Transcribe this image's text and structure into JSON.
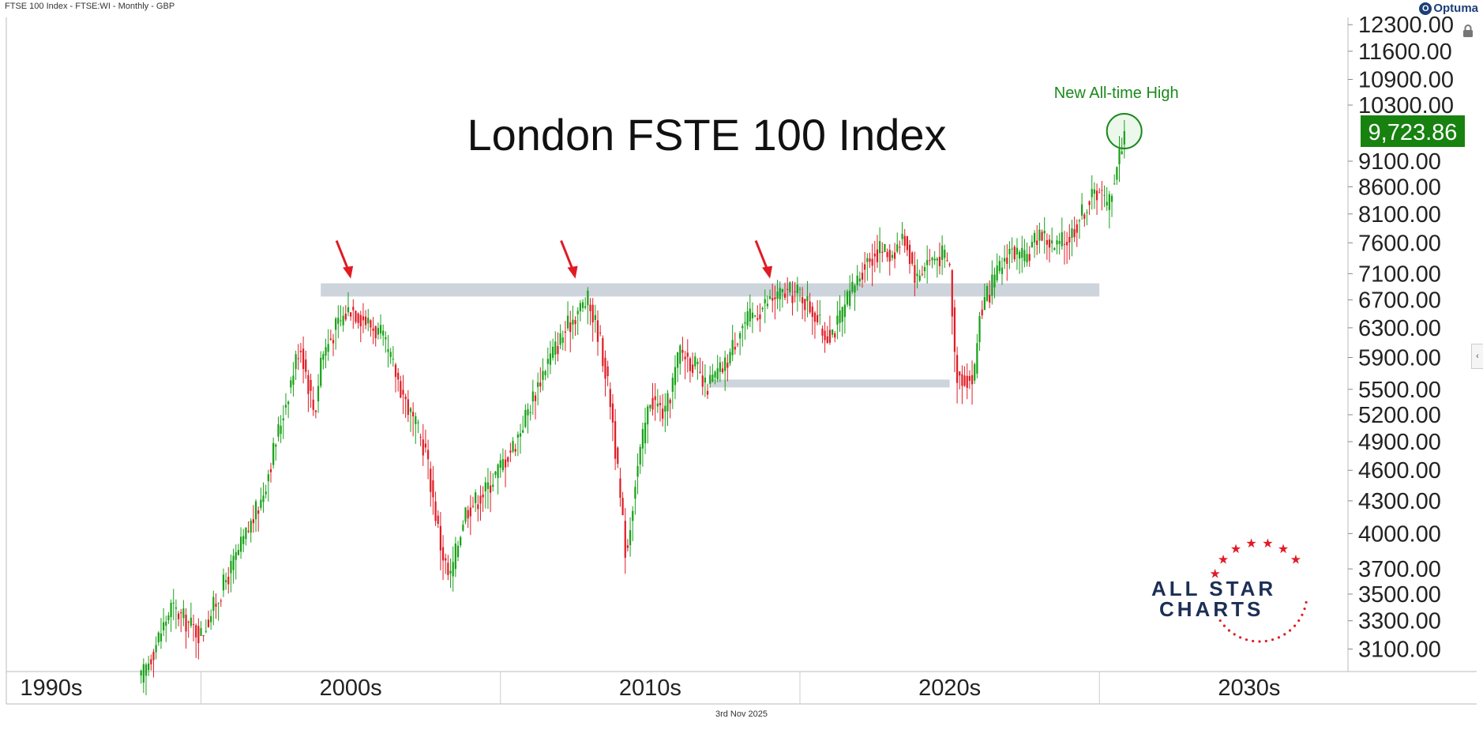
{
  "header": {
    "text": "FTSE 100 Index - FTSE:WI - Monthly - GBP"
  },
  "brand": {
    "name": "Optuma"
  },
  "footer": {
    "date": "3rd Nov 2025"
  },
  "logo": {
    "line1": "ALL STAR",
    "line2": "CHARTS"
  },
  "chart_data": {
    "type": "candlestick",
    "title": "London FSTE 100 Index",
    "y_scale": "log",
    "ylim": [
      2950,
      12500
    ],
    "y_ticks": [
      "12300.00",
      "11600.00",
      "10900.00",
      "10300.00",
      "9100.00",
      "8600.00",
      "8100.00",
      "7600.00",
      "7100.00",
      "6700.00",
      "6300.00",
      "5900.00",
      "5500.00",
      "5200.00",
      "4900.00",
      "4600.00",
      "4300.00",
      "4000.00",
      "3700.00",
      "3500.00",
      "3300.00",
      "3100.00"
    ],
    "x_labels": [
      "1990s",
      "2000s",
      "2010s",
      "2020s",
      "2030s"
    ],
    "last_price": {
      "label": "9,723.86",
      "value": 9723.86,
      "color": "#17820f"
    },
    "up_color": "#17a117",
    "down_color": "#e01b24",
    "path_points": [
      [
        1993.0,
        2900
      ],
      [
        1994.0,
        3400
      ],
      [
        1995.0,
        3200
      ],
      [
        1996.0,
        3700
      ],
      [
        1997.0,
        4300
      ],
      [
        1998.0,
        5600
      ],
      [
        1998.3,
        6100
      ],
      [
        1998.8,
        5200
      ],
      [
        1999.0,
        5900
      ],
      [
        1999.5,
        6300
      ],
      [
        2000.0,
        6600
      ],
      [
        2000.5,
        6400
      ],
      [
        2001.0,
        6200
      ],
      [
        2001.5,
        5700
      ],
      [
        2002.0,
        5200
      ],
      [
        2002.5,
        4800
      ],
      [
        2003.0,
        3900
      ],
      [
        2003.3,
        3600
      ],
      [
        2003.8,
        4200
      ],
      [
        2004.5,
        4400
      ],
      [
        2005.5,
        4900
      ],
      [
        2006.5,
        5800
      ],
      [
        2007.5,
        6500
      ],
      [
        2007.9,
        6700
      ],
      [
        2008.3,
        6200
      ],
      [
        2008.7,
        5300
      ],
      [
        2009.0,
        4300
      ],
      [
        2009.2,
        3800
      ],
      [
        2009.5,
        4500
      ],
      [
        2010.0,
        5400
      ],
      [
        2010.5,
        5200
      ],
      [
        2011.0,
        6000
      ],
      [
        2011.5,
        5800
      ],
      [
        2011.8,
        5500
      ],
      [
        2012.5,
        5800
      ],
      [
        2013.0,
        6300
      ],
      [
        2013.5,
        6500
      ],
      [
        2014.0,
        6700
      ],
      [
        2014.5,
        6800
      ],
      [
        2015.0,
        6800
      ],
      [
        2015.5,
        6500
      ],
      [
        2015.8,
        6200
      ],
      [
        2016.2,
        6300
      ],
      [
        2016.8,
        6900
      ],
      [
        2017.2,
        7300
      ],
      [
        2017.7,
        7500
      ],
      [
        2018.0,
        7400
      ],
      [
        2018.5,
        7700
      ],
      [
        2018.9,
        7000
      ],
      [
        2019.2,
        7300
      ],
      [
        2019.8,
        7400
      ],
      [
        2020.0,
        7200
      ],
      [
        2020.2,
        5700
      ],
      [
        2020.8,
        5600
      ],
      [
        2021.0,
        6500
      ],
      [
        2021.5,
        7000
      ],
      [
        2022.0,
        7500
      ],
      [
        2022.5,
        7300
      ],
      [
        2023.0,
        7800
      ],
      [
        2023.5,
        7500
      ],
      [
        2024.0,
        7700
      ],
      [
        2024.5,
        8200
      ],
      [
        2025.0,
        8600
      ],
      [
        2025.25,
        8200
      ],
      [
        2025.5,
        8800
      ],
      [
        2025.83,
        9723.86
      ]
    ],
    "resistance_band": {
      "x": [
        1999.0,
        2025.0
      ],
      "y": [
        6750,
        6950
      ]
    },
    "support_band": {
      "x": [
        2012.0,
        2020.0
      ],
      "y": [
        5550,
        5620
      ]
    },
    "arrows_x": [
      2000.0,
      2007.5,
      2014.0
    ],
    "annotation": {
      "text": "New All-time High",
      "x": 2025.83,
      "y": 9723.86
    }
  }
}
